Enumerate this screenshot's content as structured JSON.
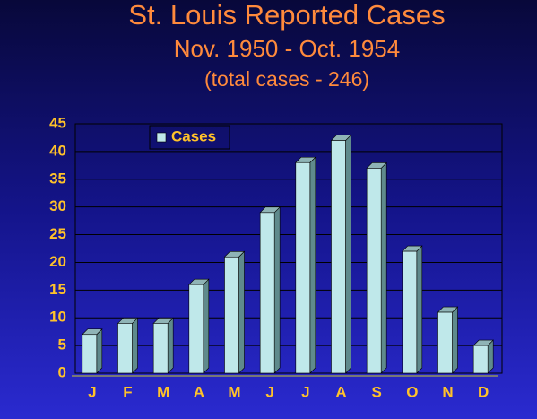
{
  "chart_data": {
    "type": "bar",
    "title": "St. Louis Reported Cases",
    "subtitle": "Nov. 1950 - Oct. 1954",
    "annotation": "(total cases - 246)",
    "categories": [
      "J",
      "F",
      "M",
      "A",
      "M",
      "J",
      "J",
      "A",
      "S",
      "O",
      "N",
      "D"
    ],
    "series": [
      {
        "name": "Cases",
        "color": "#bfe8ea",
        "values": [
          7,
          9,
          9,
          16,
          21,
          29,
          38,
          42,
          37,
          22,
          11,
          5
        ]
      }
    ],
    "ylim": [
      0,
      45
    ],
    "yticks": [
      0,
      5,
      10,
      15,
      20,
      25,
      30,
      35,
      40,
      45
    ],
    "grid": true,
    "legend": "top-left"
  }
}
